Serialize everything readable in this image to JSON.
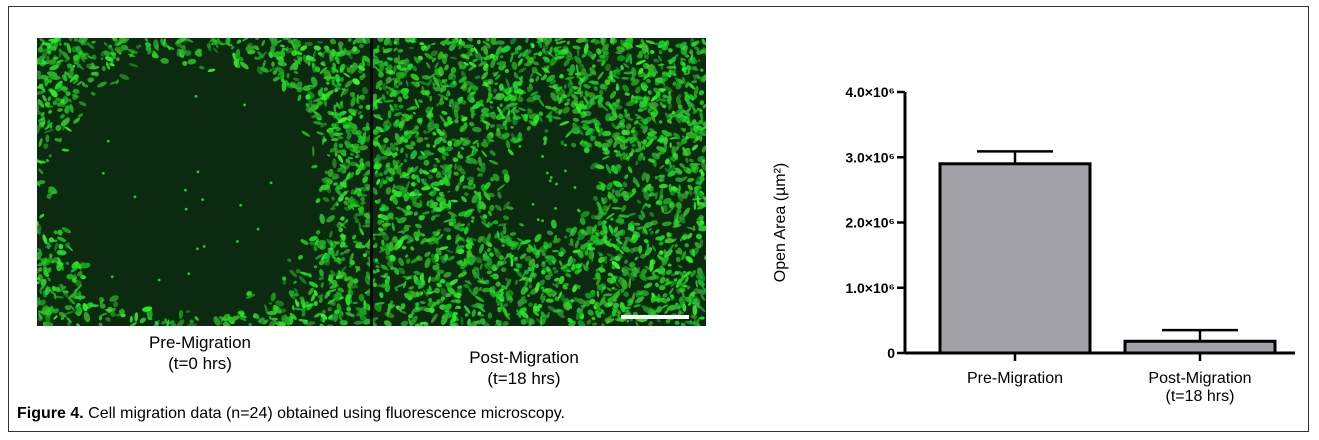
{
  "panels": {
    "left_caption_line1": "Pre-Migration",
    "left_caption_line2": "(t=0 hrs)",
    "right_caption_line1": "Post-Migration",
    "right_caption_line2": "(t=18 hrs)"
  },
  "figure_caption": {
    "label": "Figure 4.",
    "text": " Cell migration data (n=24) obtained using fluorescence microscopy."
  },
  "colors": {
    "cell_green": "#27c92b",
    "background_dark": "#0b2a10",
    "bar_fill": "#a3a2a8"
  },
  "chart_data": {
    "type": "bar",
    "categories": [
      "Pre-Migration",
      "Post-Migration\n(t=18 hrs)"
    ],
    "values": [
      2900000,
      180000
    ],
    "error_bars": [
      190000,
      170000
    ],
    "ylabel": "Open Area (µm²)",
    "ylim": [
      0,
      4000000
    ],
    "yticks": [
      {
        "value": 0,
        "label": "0"
      },
      {
        "value": 1000000,
        "label": "1.0×10⁶"
      },
      {
        "value": 2000000,
        "label": "2.0×10⁶"
      },
      {
        "value": 3000000,
        "label": "3.0×10⁶"
      },
      {
        "value": 4000000,
        "label": "4.0×10⁶"
      }
    ],
    "grid": false,
    "legend": "none"
  }
}
